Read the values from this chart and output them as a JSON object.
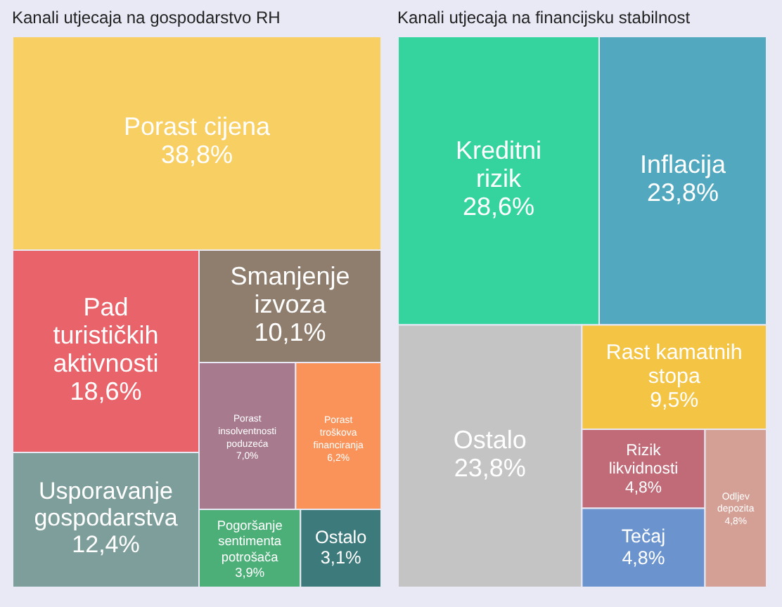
{
  "chart_data": [
    {
      "type": "other",
      "title": "Kanali utjecaja na gospodarstvo RH",
      "categories": [
        "Porast cijena",
        "Pad turističkih aktivnosti",
        "Usporavanje gospodarstva",
        "Smanjenje izvoza",
        "Porast insolventnosti poduzeća",
        "Porast troškova financiranja",
        "Pogoršanje sentimenta potrošača",
        "Ostalo"
      ],
      "values": [
        38.8,
        18.6,
        12.4,
        10.1,
        7.0,
        6.2,
        3.9,
        3.1
      ],
      "value_labels": [
        "38,8%",
        "18,6%",
        "12,4%",
        "10,1%",
        "7,0%",
        "6,2%",
        "3,9%",
        "3,1%"
      ],
      "colors": [
        "#f7cf63",
        "#e8636a",
        "#7d9e9a",
        "#8f7e6e",
        "#a77a8e",
        "#f9935a",
        "#4caf78",
        "#3d7a7c"
      ]
    },
    {
      "type": "other",
      "title": "Kanali utjecaja na financijsku stabilnost",
      "categories": [
        "Kreditni rizik",
        "Inflacija",
        "Ostalo",
        "Rast kamatnih stopa",
        "Rizik likvidnosti",
        "Tečaj",
        "Odljev depozita"
      ],
      "values": [
        28.6,
        23.8,
        23.8,
        9.5,
        4.8,
        4.8,
        4.8
      ],
      "value_labels": [
        "28,6%",
        "23,8%",
        "23,8%",
        "9,5%",
        "4,8%",
        "4,8%",
        "4,8%"
      ],
      "colors": [
        "#35d49f",
        "#52a8be",
        "#c4c4c4",
        "#f4c444",
        "#c16a78",
        "#6b94cf",
        "#d4a095"
      ]
    }
  ]
}
